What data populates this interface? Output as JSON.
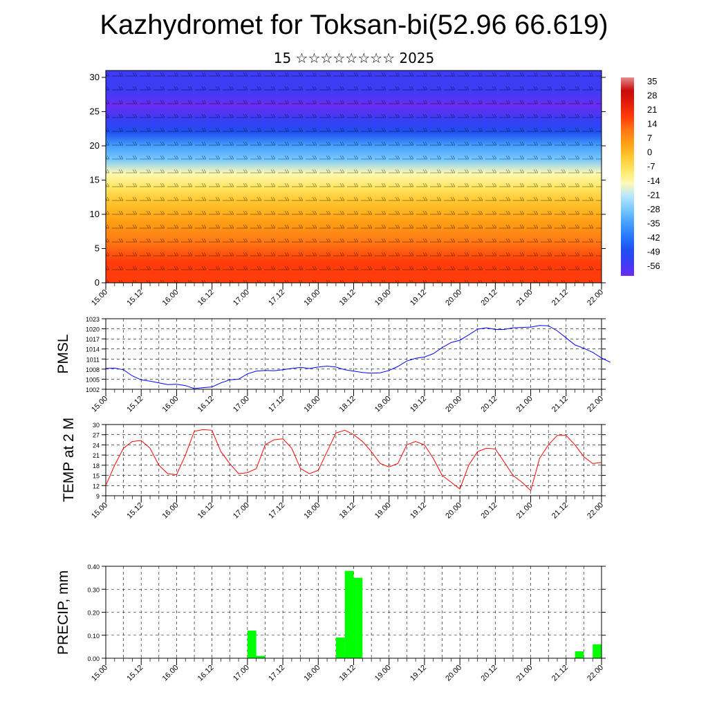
{
  "header": {
    "title": "Kazhydromet for Toksan-bi(52.96 66.619)",
    "subtitle": "15 ☆☆☆☆☆☆☆☆ 2025"
  },
  "colors": {
    "pmsl_line": "#0000ff",
    "temp_line": "#ff0000",
    "precip_bar": "#00ff00",
    "axis": "#000000",
    "grid": "#000000"
  },
  "x_tick_labels": [
    "15.00",
    "15.12",
    "16.00",
    "16.12",
    "17.00",
    "17.12",
    "18.00",
    "18.12",
    "19.00",
    "19.12",
    "20.00",
    "20.12",
    "21.00",
    "21.12",
    "22.00"
  ],
  "chart_data": [
    {
      "type": "heatmap",
      "name_hint": "vertical cross-section with wind barbs",
      "y_ticks": [
        "0",
        "5",
        "10",
        "15",
        "20",
        "25",
        "30"
      ],
      "ylim": [
        0,
        31
      ],
      "colorbar_labels": [
        "35",
        "28",
        "21",
        "14",
        "7",
        "0",
        "-7",
        "-14",
        "-21",
        "-28",
        "-35",
        "-42",
        "-49",
        "-56"
      ],
      "colorbar_range": [
        -63,
        42
      ],
      "colormap": [
        "#6a2cf0",
        "#3c3cf5",
        "#1e50f0",
        "#2878ff",
        "#46a0ff",
        "#78c8ff",
        "#b4e6ff",
        "#fffab4",
        "#ffe664",
        "#ffc830",
        "#ffa014",
        "#ff7814",
        "#ff3c0a",
        "#e61e0a",
        "#c80a0a",
        "#e68c8c"
      ],
      "temperature_profile": {
        "levels": [
          0,
          3,
          6,
          9,
          12,
          14,
          16,
          18,
          20,
          22,
          24,
          26,
          28,
          31
        ],
        "values": [
          22,
          20,
          15,
          9,
          2,
          -4,
          -14,
          -24,
          -35,
          -45,
          -52,
          -57,
          -56,
          -55
        ]
      },
      "grid": false
    },
    {
      "type": "line",
      "ylabel": "PMSL",
      "y_ticks": [
        "1002",
        "1005",
        "1008",
        "1011",
        "1014",
        "1017",
        "1020",
        "1023"
      ],
      "ylim": [
        1002,
        1023
      ],
      "x_start": 0,
      "x_step_hours": 3,
      "series": [
        {
          "values": [
            1008.2,
            1008.3,
            1007.8,
            1006.0,
            1004.8,
            1004.4,
            1003.9,
            1003.4,
            1003.5,
            1003.1,
            1002.2,
            1002.5,
            1002.7,
            1003.9,
            1004.8,
            1005.0,
            1006.6,
            1007.4,
            1007.6,
            1007.5,
            1007.8,
            1008.2,
            1008.5,
            1008.2,
            1008.6,
            1008.9,
            1008.6,
            1007.8,
            1007.4,
            1007.0,
            1006.8,
            1006.9,
            1007.6,
            1008.8,
            1010.4,
            1011.2,
            1011.6,
            1012.6,
            1014.4,
            1015.9,
            1016.6,
            1018.2,
            1019.9,
            1020.3,
            1019.8,
            1019.8,
            1020.3,
            1020.4,
            1020.5,
            1021.0,
            1020.9,
            1019.4,
            1017.3,
            1015.2,
            1014.2,
            1013.0,
            1011.3,
            1010.0
          ]
        }
      ],
      "grid": true
    },
    {
      "type": "line",
      "ylabel": "TEMP at 2 M",
      "y_ticks": [
        "9",
        "12",
        "15",
        "18",
        "21",
        "24",
        "27",
        "30"
      ],
      "ylim": [
        9,
        30
      ],
      "x_start": 0,
      "x_step_hours": 3,
      "series": [
        {
          "values": [
            12.0,
            18.0,
            23.0,
            25.0,
            25.3,
            23.0,
            18.0,
            15.5,
            15.2,
            21.0,
            28.0,
            28.5,
            28.3,
            22.0,
            18.5,
            15.5,
            15.8,
            17.0,
            24.0,
            25.5,
            25.8,
            23.0,
            17.0,
            15.5,
            16.5,
            22.0,
            27.5,
            28.3,
            27.0,
            25.0,
            22.0,
            18.5,
            17.5,
            18.5,
            24.0,
            25.0,
            24.0,
            20.0,
            15.0,
            13.0,
            11.0,
            18.0,
            22.0,
            23.0,
            22.8,
            19.0,
            15.0,
            13.0,
            10.5,
            20.0,
            24.0,
            26.8,
            26.8,
            24.0,
            20.5,
            18.5,
            18.8
          ]
        }
      ],
      "grid": true
    },
    {
      "type": "bar",
      "ylabel": "PRECIP, mm",
      "y_ticks": [
        "0.00",
        "0.10",
        "0.20",
        "0.30",
        "0.40"
      ],
      "ylim": [
        0,
        0.4
      ],
      "bar_width_hours": 3,
      "bars": [
        {
          "start_hour": 48,
          "value": 0.12
        },
        {
          "start_hour": 51,
          "value": 0.01
        },
        {
          "start_hour": 78,
          "value": 0.09
        },
        {
          "start_hour": 81,
          "value": 0.38
        },
        {
          "start_hour": 84,
          "value": 0.35
        },
        {
          "start_hour": 159,
          "value": 0.03
        },
        {
          "start_hour": 165,
          "value": 0.06
        }
      ],
      "grid": true
    }
  ]
}
